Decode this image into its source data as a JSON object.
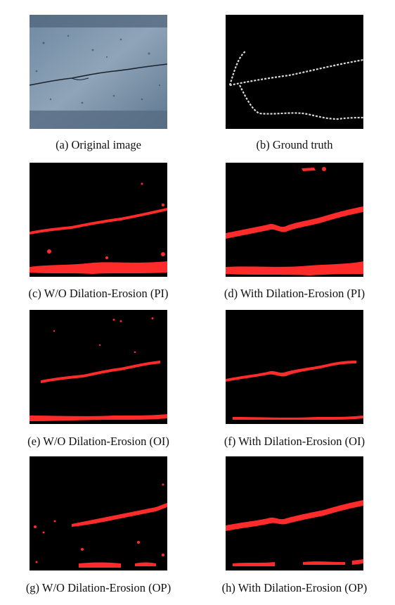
{
  "figure": {
    "panels": [
      {
        "id": "a",
        "caption": "(a) Original image"
      },
      {
        "id": "b",
        "caption": "(b) Ground truth"
      },
      {
        "id": "c",
        "caption": "(c) W/O Dilation-Erosion (PI)"
      },
      {
        "id": "d",
        "caption": "(d) With Dilation-Erosion (PI)"
      },
      {
        "id": "e",
        "caption": "(e) W/O Dilation-Erosion (OI)"
      },
      {
        "id": "f",
        "caption": "(f) With Dilation-Erosion (OI)"
      },
      {
        "id": "g",
        "caption": "(g) W/O Dilation-Erosion (OP)"
      },
      {
        "id": "h",
        "caption": "(h) With Dilation-Erosion (OP)"
      }
    ]
  },
  "colors": {
    "segmentation": "#ff2a2a",
    "ground_truth": "#d8d8d8",
    "background": "#000000",
    "concrete": "#7f95ab"
  }
}
